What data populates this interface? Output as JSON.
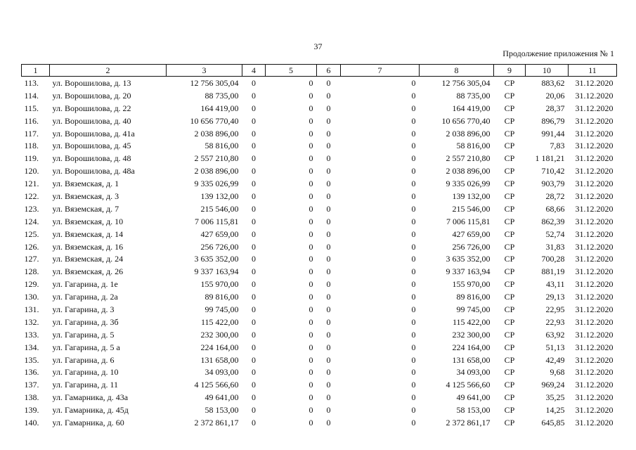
{
  "page_number": "37",
  "continuation": "Продолжение приложения № 1",
  "columns": [
    "1",
    "2",
    "3",
    "4",
    "5",
    "6",
    "7",
    "8",
    "9",
    "10",
    "11"
  ],
  "rows": [
    [
      "113.",
      "ул. Ворошилова, д. 13",
      "12 756 305,04",
      "0",
      "0",
      "0",
      "0",
      "12 756 305,04",
      "СР",
      "883,62",
      "31.12.2020"
    ],
    [
      "114.",
      "ул. Ворошилова, д. 20",
      "88 735,00",
      "0",
      "0",
      "0",
      "0",
      "88 735,00",
      "СР",
      "20,06",
      "31.12.2020"
    ],
    [
      "115.",
      "ул. Ворошилова, д. 22",
      "164 419,00",
      "0",
      "0",
      "0",
      "0",
      "164 419,00",
      "СР",
      "28,37",
      "31.12.2020"
    ],
    [
      "116.",
      "ул. Ворошилова, д. 40",
      "10 656 770,40",
      "0",
      "0",
      "0",
      "0",
      "10 656 770,40",
      "СР",
      "896,79",
      "31.12.2020"
    ],
    [
      "117.",
      "ул. Ворошилова, д. 41а",
      "2 038 896,00",
      "0",
      "0",
      "0",
      "0",
      "2 038 896,00",
      "СР",
      "991,44",
      "31.12.2020"
    ],
    [
      "118.",
      "ул. Ворошилова, д. 45",
      "58 816,00",
      "0",
      "0",
      "0",
      "0",
      "58 816,00",
      "СР",
      "7,83",
      "31.12.2020"
    ],
    [
      "119.",
      "ул. Ворошилова, д. 48",
      "2 557 210,80",
      "0",
      "0",
      "0",
      "0",
      "2 557 210,80",
      "СР",
      "1 181,21",
      "31.12.2020"
    ],
    [
      "120.",
      "ул. Ворошилова, д. 48а",
      "2 038 896,00",
      "0",
      "0",
      "0",
      "0",
      "2 038 896,00",
      "СР",
      "710,42",
      "31.12.2020"
    ],
    [
      "121.",
      "ул. Вяземская, д. 1",
      "9 335 026,99",
      "0",
      "0",
      "0",
      "0",
      "9 335 026,99",
      "СР",
      "903,79",
      "31.12.2020"
    ],
    [
      "122.",
      "ул. Вяземская, д. 3",
      "139 132,00",
      "0",
      "0",
      "0",
      "0",
      "139 132,00",
      "СР",
      "28,72",
      "31.12.2020"
    ],
    [
      "123.",
      "ул. Вяземская, д. 7",
      "215 546,00",
      "0",
      "0",
      "0",
      "0",
      "215 546,00",
      "СР",
      "68,66",
      "31.12.2020"
    ],
    [
      "124.",
      "ул. Вяземская, д. 10",
      "7 006 115,81",
      "0",
      "0",
      "0",
      "0",
      "7 006 115,81",
      "СР",
      "862,39",
      "31.12.2020"
    ],
    [
      "125.",
      "ул. Вяземская, д. 14",
      "427 659,00",
      "0",
      "0",
      "0",
      "0",
      "427 659,00",
      "СР",
      "52,74",
      "31.12.2020"
    ],
    [
      "126.",
      "ул. Вяземская, д. 16",
      "256 726,00",
      "0",
      "0",
      "0",
      "0",
      "256 726,00",
      "СР",
      "31,83",
      "31.12.2020"
    ],
    [
      "127.",
      "ул. Вяземская, д. 24",
      "3 635 352,00",
      "0",
      "0",
      "0",
      "0",
      "3 635 352,00",
      "СР",
      "700,28",
      "31.12.2020"
    ],
    [
      "128.",
      "ул. Вяземская, д. 26",
      "9 337 163,94",
      "0",
      "0",
      "0",
      "0",
      "9 337 163,94",
      "СР",
      "881,19",
      "31.12.2020"
    ],
    [
      "129.",
      "ул. Гагарина, д. 1е",
      "155 970,00",
      "0",
      "0",
      "0",
      "0",
      "155 970,00",
      "СР",
      "43,11",
      "31.12.2020"
    ],
    [
      "130.",
      "ул. Гагарина, д. 2а",
      "89 816,00",
      "0",
      "0",
      "0",
      "0",
      "89 816,00",
      "СР",
      "29,13",
      "31.12.2020"
    ],
    [
      "131.",
      "ул. Гагарина, д. 3",
      "99 745,00",
      "0",
      "0",
      "0",
      "0",
      "99 745,00",
      "СР",
      "22,95",
      "31.12.2020"
    ],
    [
      "132.",
      "ул. Гагарина, д. 3б",
      "115 422,00",
      "0",
      "0",
      "0",
      "0",
      "115 422,00",
      "СР",
      "22,93",
      "31.12.2020"
    ],
    [
      "133.",
      "ул. Гагарина, д. 5",
      "232 300,00",
      "0",
      "0",
      "0",
      "0",
      "232 300,00",
      "СР",
      "63,92",
      "31.12.2020"
    ],
    [
      "134.",
      "ул. Гагарина, д. 5 а",
      "224 164,00",
      "0",
      "0",
      "0",
      "0",
      "224 164,00",
      "СР",
      "51,13",
      "31.12.2020"
    ],
    [
      "135.",
      "ул. Гагарина, д. 6",
      "131 658,00",
      "0",
      "0",
      "0",
      "0",
      "131 658,00",
      "СР",
      "42,49",
      "31.12.2020"
    ],
    [
      "136.",
      "ул. Гагарина, д. 10",
      "34 093,00",
      "0",
      "0",
      "0",
      "0",
      "34 093,00",
      "СР",
      "9,68",
      "31.12.2020"
    ],
    [
      "137.",
      "ул. Гагарина, д. 11",
      "4 125 566,60",
      "0",
      "0",
      "0",
      "0",
      "4 125 566,60",
      "СР",
      "969,24",
      "31.12.2020"
    ],
    [
      "138.",
      "ул. Гамарника, д. 43а",
      "49 641,00",
      "0",
      "0",
      "0",
      "0",
      "49 641,00",
      "СР",
      "35,25",
      "31.12.2020"
    ],
    [
      "139.",
      "ул. Гамарника, д. 45д",
      "58 153,00",
      "0",
      "0",
      "0",
      "0",
      "58 153,00",
      "СР",
      "14,25",
      "31.12.2020"
    ],
    [
      "140.",
      "ул. Гамарника, д. 60",
      "2 372 861,17",
      "0",
      "0",
      "0",
      "0",
      "2 372 861,17",
      "СР",
      "645,85",
      "31.12.2020"
    ]
  ]
}
